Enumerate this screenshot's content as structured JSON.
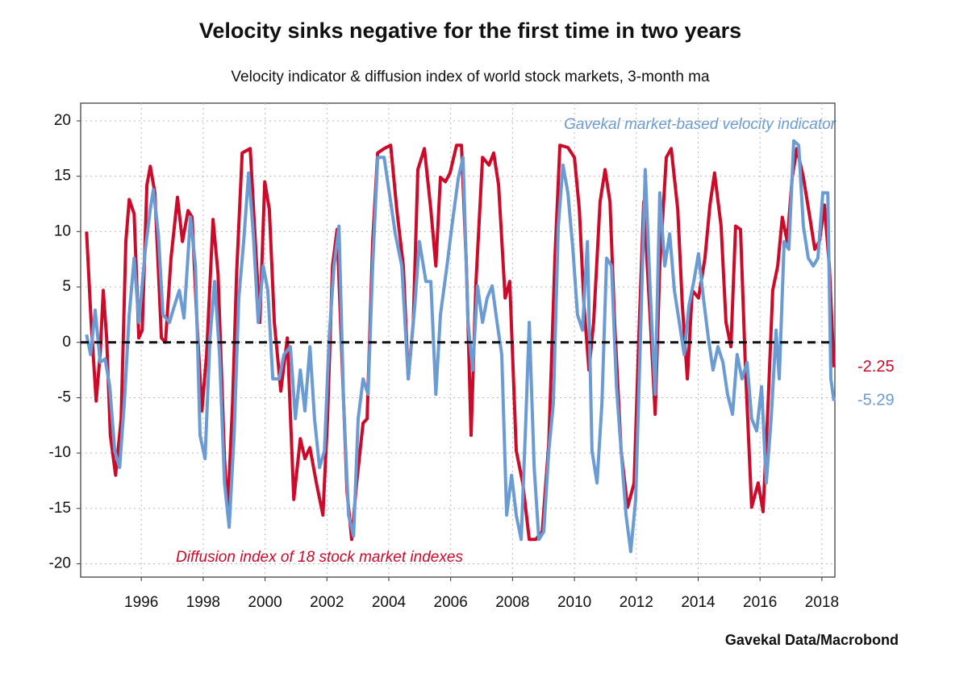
{
  "chart_data": {
    "type": "line",
    "title": "Velocity sinks negative for the first time in two years",
    "subtitle": "Velocity indicator & diffusion index of world stock markets, 3-month ma",
    "source": "Gavekal Data/Macrobond",
    "annotations": [
      "Gavekal market-based velocity indicator",
      "Diffusion index of 18 stock market indexes"
    ],
    "xlim": [
      1994.04,
      2018.42
    ],
    "xticks": [
      1996,
      1998,
      2000,
      2002,
      2004,
      2006,
      2008,
      2010,
      2012,
      2014,
      2016,
      2018
    ],
    "ylim": [
      -21.2,
      21.6
    ],
    "yticks": [
      -20,
      -15,
      -10,
      -5,
      0,
      5,
      10,
      15,
      20
    ],
    "grid": true,
    "reference_line": 0,
    "series": [
      {
        "name": "Diffusion index of 18 stock market indexes",
        "color": "#cc0a2a",
        "x": [
          1994.23,
          1994.38,
          1994.54,
          1994.67,
          1994.77,
          1994.88,
          1995.0,
          1995.17,
          1995.35,
          1995.5,
          1995.61,
          1995.77,
          1995.92,
          1996.03,
          1996.18,
          1996.29,
          1996.44,
          1996.65,
          1996.78,
          1996.96,
          1997.17,
          1997.33,
          1997.51,
          1997.64,
          1997.8,
          1997.96,
          1998.11,
          1998.32,
          1998.48,
          1998.69,
          1998.79,
          1998.95,
          1999.08,
          1999.26,
          1999.52,
          1999.73,
          1999.83,
          1999.99,
          2000.14,
          2000.3,
          2000.51,
          2000.72,
          2000.93,
          2001.14,
          2001.29,
          2001.45,
          2001.66,
          2001.87,
          2002.02,
          2002.18,
          2002.33,
          2002.49,
          2002.65,
          2002.8,
          2002.96,
          2003.17,
          2003.3,
          2003.48,
          2003.64,
          2003.85,
          2004.06,
          2004.26,
          2004.47,
          2004.63,
          2004.79,
          2004.94,
          2005.15,
          2005.36,
          2005.52,
          2005.67,
          2005.83,
          2005.98,
          2006.19,
          2006.35,
          2006.51,
          2006.66,
          2006.82,
          2007.03,
          2007.24,
          2007.39,
          2007.55,
          2007.76,
          2007.91,
          2008.12,
          2008.33,
          2008.54,
          2008.75,
          2008.96,
          2009.17,
          2009.37,
          2009.53,
          2009.79,
          2010.0,
          2010.16,
          2010.31,
          2010.47,
          2010.62,
          2010.83,
          2010.99,
          2011.15,
          2011.3,
          2011.51,
          2011.72,
          2011.93,
          2012.08,
          2012.24,
          2012.45,
          2012.61,
          2012.76,
          2012.97,
          2013.13,
          2013.34,
          2013.49,
          2013.65,
          2013.81,
          2014.01,
          2014.22,
          2014.38,
          2014.53,
          2014.74,
          2014.9,
          2015.06,
          2015.21,
          2015.37,
          2015.53,
          2015.73,
          2015.94,
          2016.1,
          2016.26,
          2016.41,
          2016.57,
          2016.72,
          2016.88,
          2017.04,
          2017.19,
          2017.4,
          2017.61,
          2017.77,
          2017.92,
          2018.08,
          2018.24,
          2018.39
        ],
        "values": [
          10,
          1.8,
          -5.3,
          -1,
          4.7,
          0.4,
          -8.4,
          -12,
          -6.9,
          9.1,
          12.9,
          11.6,
          0.4,
          1.1,
          14.2,
          15.9,
          13.5,
          0.4,
          0,
          7.6,
          13.1,
          9.1,
          11.9,
          11.3,
          1.8,
          -6.2,
          -1.1,
          11.1,
          6.2,
          -10.5,
          -15.3,
          -5.5,
          6.2,
          17.1,
          17.5,
          6.9,
          1.8,
          14.5,
          12,
          1.8,
          -4.4,
          0.4,
          -14.2,
          -8.7,
          -10.5,
          -9.5,
          -12.7,
          -15.6,
          -6.9,
          6.9,
          10.2,
          -1.8,
          -13.5,
          -17.8,
          -12.7,
          -7.3,
          -6.9,
          9.1,
          17.1,
          17.5,
          17.8,
          12,
          6.9,
          -3.3,
          1.8,
          15.6,
          17.5,
          12,
          6.9,
          14.9,
          14.5,
          15.3,
          17.8,
          17.8,
          6.9,
          -8.4,
          5.5,
          16.7,
          16,
          17.1,
          14.2,
          4,
          5.5,
          -9.8,
          -12.7,
          -17.8,
          -17.8,
          -17.1,
          -9.1,
          7.6,
          17.8,
          17.6,
          16.7,
          12,
          3.3,
          -2.5,
          1.8,
          12.7,
          15.6,
          12.7,
          1.8,
          -9.8,
          -14.9,
          -12.7,
          0.4,
          12.7,
          2.2,
          -6.5,
          6.9,
          16.7,
          17.5,
          12,
          3.3,
          -3.3,
          4.7,
          4,
          7.6,
          12.4,
          15.3,
          10.5,
          1.8,
          -0.4,
          10.5,
          10.2,
          -2.5,
          -14.9,
          -12.7,
          -15.3,
          -5.5,
          4.7,
          6.9,
          11.3,
          9.1,
          14.9,
          17.5,
          14.9,
          11.3,
          8.4,
          9.1,
          12.4,
          6.9,
          -2.25
        ]
      },
      {
        "name": "Gavekal market-based velocity indicator",
        "color": "#6a9bd3",
        "x": [
          1994.23,
          1994.36,
          1994.51,
          1994.67,
          1994.83,
          1994.98,
          1995.14,
          1995.3,
          1995.45,
          1995.61,
          1995.77,
          1995.92,
          1996.13,
          1996.29,
          1996.39,
          1996.55,
          1996.7,
          1996.91,
          1997.07,
          1997.23,
          1997.38,
          1997.59,
          1997.75,
          1997.9,
          1998.06,
          1998.22,
          1998.37,
          1998.53,
          1998.69,
          1998.84,
          1999.0,
          1999.15,
          1999.31,
          1999.47,
          1999.62,
          1999.78,
          1999.94,
          2000.09,
          2000.25,
          2000.46,
          2000.61,
          2000.82,
          2000.98,
          2001.14,
          2001.29,
          2001.45,
          2001.6,
          2001.76,
          2001.92,
          2002.07,
          2002.23,
          2002.39,
          2002.54,
          2002.7,
          2002.86,
          2003.01,
          2003.17,
          2003.33,
          2003.48,
          2003.64,
          2003.85,
          2004.06,
          2004.21,
          2004.42,
          2004.63,
          2004.84,
          2004.99,
          2005.2,
          2005.36,
          2005.52,
          2005.67,
          2005.88,
          2006.04,
          2006.25,
          2006.4,
          2006.56,
          2006.71,
          2006.87,
          2007.03,
          2007.18,
          2007.34,
          2007.5,
          2007.65,
          2007.81,
          2007.97,
          2008.12,
          2008.28,
          2008.43,
          2008.54,
          2008.7,
          2008.85,
          2009.01,
          2009.17,
          2009.32,
          2009.48,
          2009.63,
          2009.79,
          2009.95,
          2010.1,
          2010.26,
          2010.42,
          2010.57,
          2010.73,
          2010.89,
          2011.04,
          2011.2,
          2011.36,
          2011.51,
          2011.67,
          2011.82,
          2011.98,
          2012.14,
          2012.29,
          2012.45,
          2012.61,
          2012.76,
          2012.92,
          2013.08,
          2013.23,
          2013.39,
          2013.55,
          2013.7,
          2013.86,
          2014.01,
          2014.17,
          2014.33,
          2014.48,
          2014.64,
          2014.8,
          2014.95,
          2015.11,
          2015.26,
          2015.42,
          2015.58,
          2015.73,
          2015.89,
          2016.05,
          2016.2,
          2016.36,
          2016.52,
          2016.62,
          2016.78,
          2016.93,
          2017.09,
          2017.25,
          2017.4,
          2017.56,
          2017.72,
          2017.87,
          2018.03,
          2018.19,
          2018.29,
          2018.39
        ],
        "values": [
          0.7,
          -1.1,
          2.9,
          -1.8,
          -1.5,
          -4,
          -9.8,
          -11.3,
          -5.5,
          2.5,
          7.6,
          1.8,
          8.4,
          12,
          13.8,
          9.8,
          2.5,
          1.8,
          3.3,
          4.7,
          2.2,
          11.3,
          6.9,
          -8.4,
          -10.5,
          0.4,
          5.5,
          -1.1,
          -12.7,
          -16.7,
          -8.4,
          4,
          9.1,
          15.3,
          9.8,
          1.8,
          6.9,
          4.7,
          -3.3,
          -3.3,
          -1.1,
          -0.4,
          -6.9,
          -2.5,
          -6.2,
          -0.4,
          -6.9,
          -11.3,
          -9.8,
          0.4,
          6.9,
          10.5,
          -5.5,
          -15.6,
          -17.5,
          -6.9,
          -3.3,
          -4.7,
          6.9,
          16.7,
          16.7,
          12.7,
          9.8,
          6.9,
          -3.3,
          3.3,
          9.1,
          5.5,
          5.5,
          -4.7,
          2.5,
          6.9,
          10.5,
          14.9,
          16.7,
          1.8,
          -2.5,
          5.1,
          1.8,
          4,
          5.1,
          1.8,
          -1.1,
          -15.6,
          -12,
          -15.6,
          -17.8,
          -6.9,
          1.8,
          -11.3,
          -17.8,
          -17.1,
          -9.8,
          -5.5,
          10.5,
          16,
          13.5,
          8.4,
          2.5,
          1.1,
          9.1,
          -9.8,
          -12.7,
          -5.5,
          7.6,
          6.9,
          -4,
          -9.8,
          -15.6,
          -18.9,
          -14.2,
          1.1,
          15.6,
          4.7,
          -4.7,
          13.5,
          6.9,
          9.8,
          4.7,
          1.8,
          -1.1,
          3.3,
          5.5,
          8,
          4,
          0.4,
          -2.5,
          -0.4,
          -1.8,
          -4.7,
          -6.5,
          -1.1,
          -3.3,
          -1.8,
          -6.9,
          -8,
          -4,
          -12.7,
          -6.9,
          1.1,
          -3.3,
          9.1,
          8.4,
          18.2,
          17.8,
          10.5,
          7.6,
          6.9,
          7.6,
          13.5,
          13.5,
          -3.3,
          -5.29
        ]
      }
    ]
  }
}
